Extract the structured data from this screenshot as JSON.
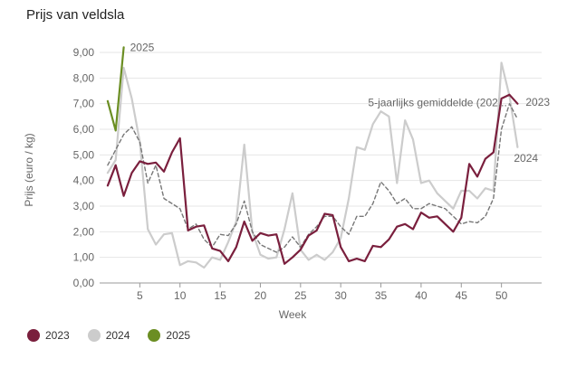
{
  "chart_data": {
    "type": "line",
    "title": "Prijs van veldsla",
    "xlabel": "Week",
    "ylabel": "Prijs (euro / kg)",
    "xlim": [
      0,
      55
    ],
    "ylim": [
      0,
      9
    ],
    "xticks": [
      5,
      10,
      15,
      20,
      25,
      30,
      35,
      40,
      45,
      50
    ],
    "yticks": [
      0,
      1,
      2,
      3,
      4,
      5,
      6,
      7,
      8,
      9
    ],
    "ytick_labels": [
      "0,00",
      "1,00",
      "2,00",
      "3,00",
      "4,00",
      "5,00",
      "6,00",
      "7,00",
      "8,00",
      "9,00"
    ],
    "grid": true,
    "series": [
      {
        "name": "2024",
        "color": "#cccccc",
        "dash": false,
        "end_label": "2024",
        "x": [
          1,
          2,
          3,
          4,
          5,
          6,
          7,
          8,
          9,
          10,
          11,
          12,
          13,
          14,
          15,
          16,
          17,
          18,
          19,
          20,
          21,
          22,
          23,
          24,
          25,
          26,
          27,
          28,
          29,
          30,
          31,
          32,
          33,
          34,
          35,
          36,
          37,
          38,
          39,
          40,
          41,
          42,
          43,
          44,
          45,
          46,
          47,
          48,
          49,
          50,
          51,
          52
        ],
        "values": [
          4.3,
          4.8,
          8.4,
          7.2,
          5.5,
          2.1,
          1.5,
          1.9,
          1.95,
          0.7,
          0.85,
          0.8,
          0.6,
          1.0,
          0.9,
          1.6,
          2.4,
          5.4,
          2.0,
          1.1,
          0.95,
          1.0,
          2.1,
          3.5,
          1.3,
          0.9,
          1.1,
          0.9,
          1.2,
          1.75,
          3.3,
          5.3,
          5.2,
          6.2,
          6.7,
          6.5,
          3.9,
          6.35,
          5.6,
          3.9,
          4.0,
          3.5,
          3.2,
          2.9,
          3.6,
          3.6,
          3.3,
          3.7,
          3.6,
          8.6,
          7.3,
          5.3
        ]
      },
      {
        "name": "5-jaarlijks gemiddelde",
        "color": "#777777",
        "dash": true,
        "end_label": "5-jaarlijks gemiddelde (202...",
        "x": [
          1,
          2,
          3,
          4,
          5,
          6,
          7,
          8,
          9,
          10,
          11,
          12,
          13,
          14,
          15,
          16,
          17,
          18,
          19,
          20,
          21,
          22,
          23,
          24,
          25,
          26,
          27,
          28,
          29,
          30,
          31,
          32,
          33,
          34,
          35,
          36,
          37,
          38,
          39,
          40,
          41,
          42,
          43,
          44,
          45,
          46,
          47,
          48,
          49,
          50,
          51,
          52
        ],
        "values": [
          4.6,
          5.2,
          5.8,
          6.1,
          5.5,
          3.9,
          4.6,
          3.3,
          3.1,
          2.9,
          2.1,
          2.3,
          1.7,
          1.4,
          1.9,
          1.85,
          2.3,
          3.2,
          2.0,
          1.5,
          1.35,
          1.2,
          1.4,
          1.8,
          1.4,
          1.9,
          2.2,
          2.6,
          2.6,
          2.2,
          1.9,
          2.6,
          2.6,
          3.1,
          3.95,
          3.6,
          3.1,
          3.3,
          2.9,
          2.9,
          3.1,
          3.0,
          2.9,
          2.6,
          2.3,
          2.4,
          2.35,
          2.6,
          3.3,
          6.0,
          7.0,
          6.4
        ]
      },
      {
        "name": "2023",
        "color": "#7a1f3d",
        "dash": false,
        "end_label": "2023",
        "x": [
          1,
          2,
          3,
          4,
          5,
          6,
          7,
          8,
          9,
          10,
          11,
          12,
          13,
          14,
          15,
          16,
          17,
          18,
          19,
          20,
          21,
          22,
          23,
          24,
          25,
          26,
          27,
          28,
          29,
          30,
          31,
          32,
          33,
          34,
          35,
          36,
          37,
          38,
          39,
          40,
          41,
          42,
          43,
          44,
          45,
          46,
          47,
          48,
          49,
          50,
          51,
          52
        ],
        "values": [
          3.8,
          4.6,
          3.4,
          4.3,
          4.75,
          4.65,
          4.7,
          4.35,
          5.1,
          5.65,
          2.05,
          2.2,
          2.25,
          1.35,
          1.25,
          0.85,
          1.4,
          2.4,
          1.65,
          1.95,
          1.85,
          1.9,
          0.75,
          1.0,
          1.3,
          1.85,
          2.05,
          2.7,
          2.65,
          1.4,
          0.85,
          0.95,
          0.85,
          1.45,
          1.4,
          1.7,
          2.2,
          2.3,
          2.1,
          2.75,
          2.55,
          2.6,
          2.3,
          2.0,
          2.55,
          4.65,
          4.15,
          4.85,
          5.1,
          7.2,
          7.35,
          7.0
        ]
      },
      {
        "name": "2025",
        "color": "#6b8e23",
        "dash": false,
        "end_label": "2025",
        "x": [
          1,
          2,
          3
        ],
        "values": [
          7.1,
          5.95,
          9.2
        ]
      }
    ]
  },
  "legend": [
    {
      "label": "2023",
      "color": "#7a1f3d"
    },
    {
      "label": "2024",
      "color": "#cccccc"
    },
    {
      "label": "2025",
      "color": "#6b8e23"
    }
  ]
}
